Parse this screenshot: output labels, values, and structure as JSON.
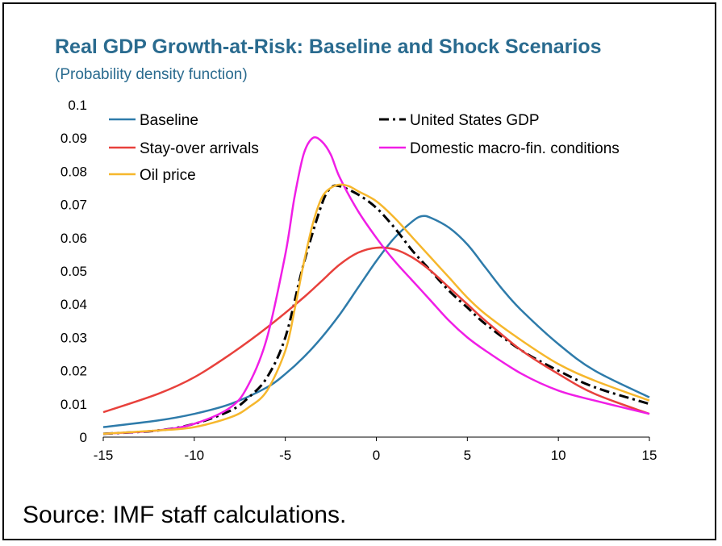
{
  "source_note": "Source: IMF staff calculations.",
  "chart_data": {
    "type": "line",
    "title": "Real GDP Growth-at-Risk: Baseline and Shock Scenarios",
    "subtitle": "(Probability density function)",
    "xlim": [
      -15,
      15
    ],
    "ylim": [
      0,
      0.1
    ],
    "xticks": [
      "-15",
      "-10",
      "-5",
      "0",
      "5",
      "10",
      "15"
    ],
    "yticks": [
      "0",
      "0.01",
      "0.02",
      "0.03",
      "0.04",
      "0.05",
      "0.06",
      "0.07",
      "0.08",
      "0.09",
      "0.1"
    ],
    "legend_position": "top",
    "series": [
      {
        "name": "Baseline",
        "color": "#2e7baa",
        "style": "solid",
        "x": [
          -15,
          -12,
          -10,
          -8,
          -6,
          -5,
          -4,
          -3,
          -2,
          -1,
          0,
          1,
          2,
          2.5,
          3,
          4,
          5,
          6,
          7,
          8,
          10,
          12,
          15
        ],
        "y": [
          0.003,
          0.005,
          0.007,
          0.01,
          0.015,
          0.019,
          0.024,
          0.03,
          0.037,
          0.045,
          0.053,
          0.06,
          0.065,
          0.0665,
          0.066,
          0.063,
          0.058,
          0.051,
          0.044,
          0.038,
          0.028,
          0.02,
          0.012
        ]
      },
      {
        "name": "United States GDP",
        "color": "#000000",
        "style": "dashdot",
        "x": [
          -15,
          -12,
          -10,
          -8,
          -7,
          -6,
          -5,
          -4,
          -3,
          -2.5,
          -2,
          -1,
          0,
          1,
          2,
          3,
          4,
          5,
          6,
          8,
          10,
          12,
          15
        ],
        "y": [
          0.001,
          0.002,
          0.004,
          0.008,
          0.012,
          0.018,
          0.03,
          0.052,
          0.07,
          0.075,
          0.0755,
          0.073,
          0.069,
          0.063,
          0.056,
          0.05,
          0.044,
          0.039,
          0.034,
          0.026,
          0.02,
          0.015,
          0.01
        ]
      },
      {
        "name": "Stay-over arrivals",
        "color": "#e8413c",
        "style": "solid",
        "x": [
          -15,
          -12,
          -10,
          -8,
          -6,
          -4,
          -3,
          -2,
          -1,
          0,
          1,
          2,
          3,
          4,
          5,
          6,
          8,
          10,
          12,
          15
        ],
        "y": [
          0.0075,
          0.013,
          0.018,
          0.025,
          0.033,
          0.042,
          0.047,
          0.052,
          0.0555,
          0.057,
          0.0565,
          0.054,
          0.05,
          0.045,
          0.04,
          0.035,
          0.026,
          0.019,
          0.013,
          0.007
        ]
      },
      {
        "name": "Domestic macro-fin. conditions",
        "color": "#f01ee6",
        "style": "solid",
        "x": [
          -15,
          -12,
          -10,
          -8,
          -7,
          -6,
          -5,
          -4.5,
          -4,
          -3.5,
          -3,
          -2.5,
          -2,
          -1,
          0,
          1,
          2,
          3,
          4,
          5,
          6,
          8,
          10,
          12,
          15
        ],
        "y": [
          0.001,
          0.002,
          0.004,
          0.009,
          0.016,
          0.03,
          0.055,
          0.072,
          0.085,
          0.09,
          0.089,
          0.085,
          0.078,
          0.068,
          0.06,
          0.053,
          0.047,
          0.041,
          0.035,
          0.03,
          0.026,
          0.019,
          0.014,
          0.011,
          0.007
        ]
      },
      {
        "name": "Oil price",
        "color": "#f6b72c",
        "style": "solid",
        "x": [
          -15,
          -12,
          -10,
          -8,
          -7,
          -6,
          -5,
          -4.5,
          -4,
          -3.5,
          -3,
          -2.5,
          -2,
          -1.5,
          -1,
          0,
          1,
          2,
          3,
          4,
          5,
          6,
          8,
          10,
          12,
          15
        ],
        "y": [
          0.001,
          0.002,
          0.003,
          0.006,
          0.009,
          0.014,
          0.026,
          0.038,
          0.052,
          0.064,
          0.072,
          0.075,
          0.076,
          0.0755,
          0.074,
          0.071,
          0.066,
          0.06,
          0.054,
          0.048,
          0.042,
          0.037,
          0.029,
          0.022,
          0.017,
          0.011
        ]
      }
    ]
  }
}
